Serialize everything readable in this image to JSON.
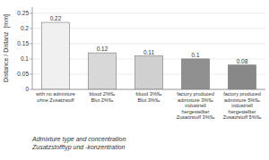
{
  "chart_data": {
    "type": "bar",
    "categories": [
      "with no admixture\nohne Zusatzstoff",
      "blood 2%‰\nBlut 2%‰",
      "blood 3%‰\nBlut 3%‰",
      "factory produced\nadmixture 3%‰\nindustriell\nhergestellter\nZusatzstoff 3%‰",
      "factory produced\nadmixture 5%‰\nindustriell\nhergestellter\nZusatzstoff 5%‰"
    ],
    "values": [
      0.22,
      0.12,
      0.11,
      0.1,
      0.08
    ],
    "colors": [
      "#f0f0f0",
      "#d8d8d8",
      "#d0d0d0",
      "#909090",
      "#888888"
    ],
    "ylabel": "Distance / Distanz  [mm]",
    "xlabel": "Admixture type and concentration\nZusatzstofftyp und -konzentration",
    "ylim": [
      0,
      0.27
    ],
    "yticks": [
      0,
      0.05,
      0.1,
      0.15,
      0.2,
      0.25
    ],
    "grid": true,
    "data_labels": true
  }
}
